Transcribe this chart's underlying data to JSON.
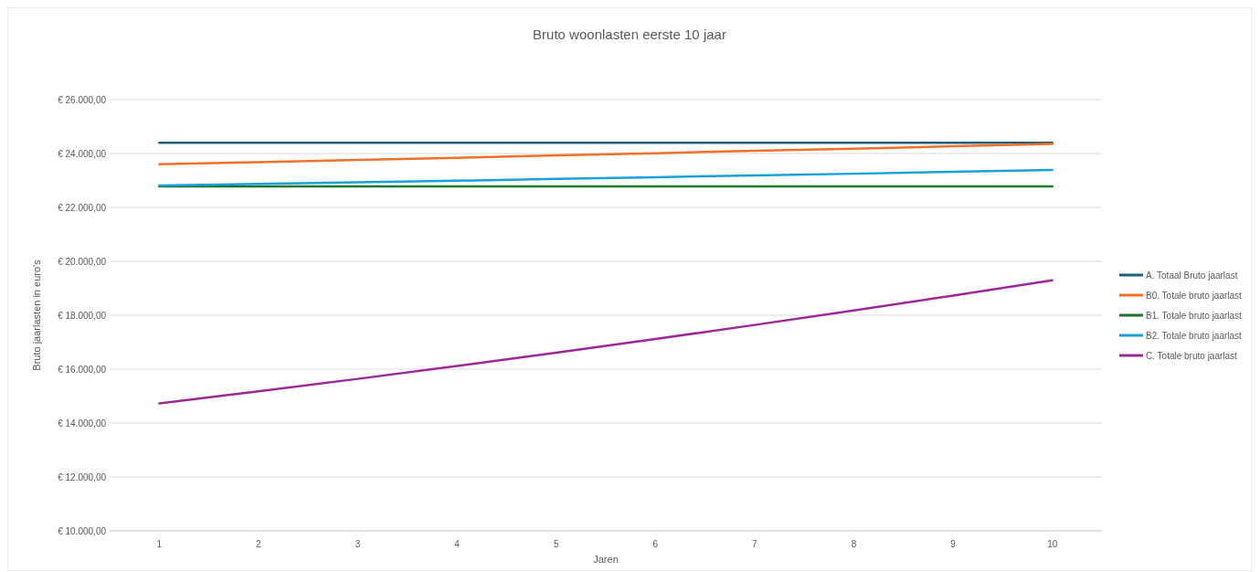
{
  "chart_data": {
    "type": "line",
    "title": "Bruto woonlasten eerste 10 jaar",
    "xlabel": "Jaren",
    "ylabel": "Bruto jaarlasten in euro's",
    "categories": [
      "1",
      "2",
      "3",
      "4",
      "5",
      "6",
      "7",
      "8",
      "9",
      "10"
    ],
    "series": [
      {
        "name": "A. Totaal Bruto jaarlast",
        "color": "#1f5c7e",
        "values": [
          24400,
          24400,
          24400,
          24400,
          24400,
          24400,
          24400,
          24400,
          24400,
          24400
        ]
      },
      {
        "name": "B0. Totale bruto jaarlast",
        "color": "#f07127",
        "values": [
          23600,
          23680,
          23760,
          23840,
          23930,
          24010,
          24100,
          24180,
          24270,
          24360
        ]
      },
      {
        "name": "B1. Totale bruto jaarlast",
        "color": "#18752a",
        "values": [
          22780,
          22780,
          22780,
          22780,
          22780,
          22780,
          22780,
          22780,
          22780,
          22780
        ]
      },
      {
        "name": "B2. Totale bruto jaarlast",
        "color": "#17a0dc",
        "values": [
          22810,
          22870,
          22930,
          22990,
          23060,
          23120,
          23190,
          23250,
          23320,
          23390
        ]
      },
      {
        "name": "C. Totale bruto jaarlast",
        "color": "#9c2898",
        "values": [
          14730,
          15180,
          15640,
          16120,
          16610,
          17120,
          17640,
          18180,
          18730,
          19300
        ]
      }
    ],
    "ylim": [
      10000,
      26000
    ],
    "yticks": [
      {
        "value": 10000,
        "label": "€ 10.000,00"
      },
      {
        "value": 12000,
        "label": "€ 12.000,00"
      },
      {
        "value": 14000,
        "label": "€ 14.000,00"
      },
      {
        "value": 16000,
        "label": "€ 16.000,00"
      },
      {
        "value": 18000,
        "label": "€ 18.000,00"
      },
      {
        "value": 20000,
        "label": "€ 20.000,00"
      },
      {
        "value": 22000,
        "label": "€ 22.000,00"
      },
      {
        "value": 24000,
        "label": "€ 24.000,00"
      },
      {
        "value": 26000,
        "label": "€ 26.000,00"
      }
    ],
    "grid": "y",
    "legend": "right",
    "marker": "none",
    "line_style": "solid"
  }
}
